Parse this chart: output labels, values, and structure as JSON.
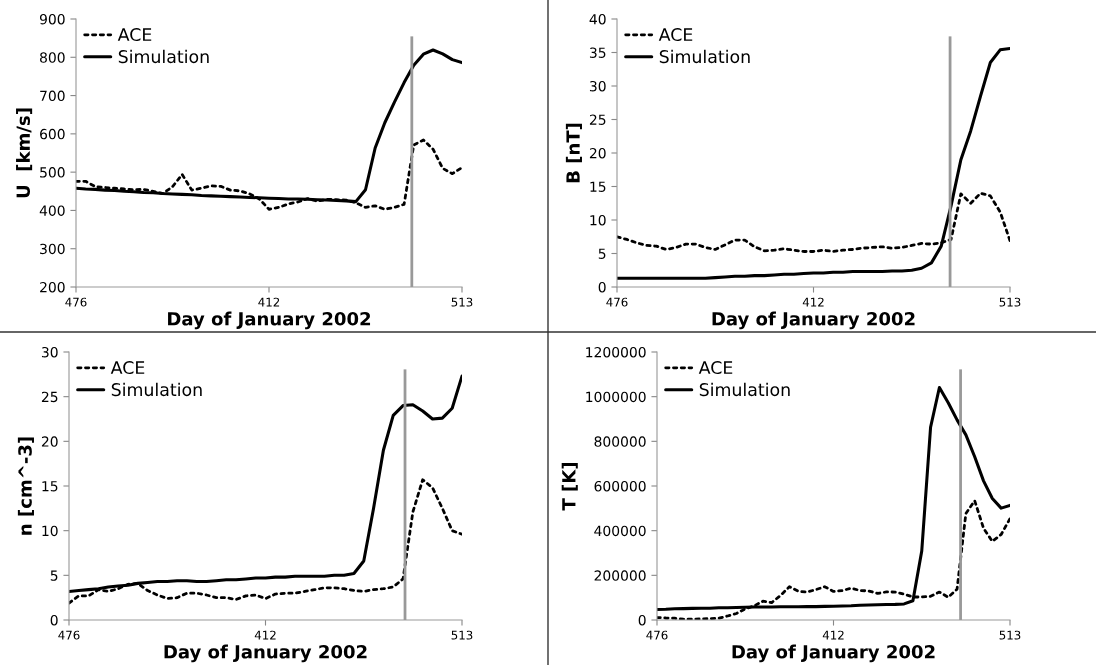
{
  "chart_data": [
    {
      "type": "line",
      "xlabel": "Day of January 2002",
      "ylabel": "U  [km/s]",
      "categories": [
        "476",
        null,
        null,
        null,
        null,
        null,
        null,
        null,
        null,
        null,
        null,
        null,
        null,
        null,
        null,
        null,
        null,
        null,
        null,
        null,
        "412",
        null,
        null,
        null,
        null,
        null,
        null,
        null,
        null,
        null,
        null,
        null,
        null,
        null,
        null,
        null,
        null,
        null,
        null,
        null,
        "513"
      ],
      "ylim": [
        200,
        900
      ],
      "yticks": [
        200,
        300,
        400,
        500,
        600,
        700,
        800,
        900
      ],
      "legend": "top left",
      "series": [
        {
          "name": "ACE",
          "color": "#000000",
          "line_style": "dotted",
          "values": [
            476,
            476,
            462,
            460,
            458,
            456,
            454,
            455,
            450,
            444,
            462,
            494,
            453,
            458,
            464,
            463,
            453,
            451,
            443,
            430,
            403,
            408,
            417,
            422,
            431,
            424,
            429,
            428,
            427,
            420,
            408,
            412,
            403,
            408,
            416,
            571,
            584,
            560,
            510,
            496,
            512
          ]
        },
        {
          "name": "Simulation",
          "color": "#000000",
          "line_style": "solid",
          "values": [
            458,
            456,
            455,
            453,
            452,
            450,
            449,
            447,
            446,
            444,
            443,
            442,
            441,
            439,
            438,
            437,
            436,
            435,
            434,
            433,
            432,
            431,
            430,
            430,
            429,
            428,
            427,
            426,
            425,
            423,
            454,
            563,
            629,
            683,
            734,
            779,
            808,
            819,
            809,
            794,
            786
          ]
        }
      ]
    },
    {
      "type": "line",
      "xlabel": "Day of January 2002",
      "ylabel": "B [nT]",
      "categories": [
        "476",
        null,
        null,
        null,
        null,
        null,
        null,
        null,
        null,
        null,
        null,
        null,
        null,
        null,
        null,
        null,
        null,
        null,
        null,
        null,
        "412",
        null,
        null,
        null,
        null,
        null,
        null,
        null,
        null,
        null,
        null,
        null,
        null,
        null,
        null,
        null,
        null,
        null,
        null,
        null,
        "513"
      ],
      "ylim": [
        0,
        40
      ],
      "yticks": [
        0,
        5,
        10,
        15,
        20,
        25,
        30,
        35,
        40
      ],
      "legend": "top left",
      "series": [
        {
          "name": "ACE",
          "color": "#000000",
          "line_style": "dotted",
          "values": [
            7.5,
            7.1,
            6.6,
            6.2,
            6.1,
            5.6,
            5.9,
            6.4,
            6.4,
            5.9,
            5.6,
            6.3,
            7.0,
            7.0,
            6.0,
            5.4,
            5.5,
            5.7,
            5.5,
            5.3,
            5.3,
            5.5,
            5.3,
            5.5,
            5.6,
            5.8,
            5.9,
            6.0,
            5.8,
            5.9,
            6.2,
            6.5,
            6.4,
            6.6,
            7.1,
            13.9,
            12.5,
            14.0,
            13.6,
            11.2,
            6.9
          ]
        },
        {
          "name": "Simulation",
          "color": "#000000",
          "line_style": "solid",
          "values": [
            1.3,
            1.3,
            1.3,
            1.3,
            1.3,
            1.3,
            1.3,
            1.3,
            1.3,
            1.3,
            1.4,
            1.5,
            1.6,
            1.6,
            1.7,
            1.7,
            1.8,
            1.9,
            1.9,
            2.0,
            2.1,
            2.1,
            2.2,
            2.2,
            2.3,
            2.3,
            2.3,
            2.3,
            2.4,
            2.4,
            2.5,
            2.8,
            3.6,
            6.1,
            12.1,
            19.0,
            23.3,
            28.5,
            33.5,
            35.4,
            35.6
          ]
        }
      ]
    },
    {
      "type": "line",
      "xlabel": "Day of January 2002",
      "ylabel": "n [cm^-3]",
      "categories": [
        "476",
        null,
        null,
        null,
        null,
        null,
        null,
        null,
        null,
        null,
        null,
        null,
        null,
        null,
        null,
        null,
        null,
        null,
        null,
        null,
        "412",
        null,
        null,
        null,
        null,
        null,
        null,
        null,
        null,
        null,
        null,
        null,
        null,
        null,
        null,
        null,
        null,
        null,
        null,
        null,
        "513"
      ],
      "ylim": [
        0,
        30
      ],
      "yticks": [
        0,
        5,
        10,
        15,
        20,
        25,
        30
      ],
      "legend": "top left",
      "series": [
        {
          "name": "ACE",
          "color": "#000000",
          "line_style": "dotted",
          "values": [
            1.9,
            2.7,
            2.7,
            3.4,
            3.2,
            3.5,
            4.0,
            4.1,
            3.3,
            2.8,
            2.4,
            2.5,
            3.0,
            3.0,
            2.8,
            2.5,
            2.5,
            2.3,
            2.7,
            2.8,
            2.4,
            2.9,
            3.0,
            3.0,
            3.2,
            3.4,
            3.6,
            3.6,
            3.5,
            3.3,
            3.2,
            3.4,
            3.5,
            3.7,
            4.6,
            12.1,
            15.7,
            14.8,
            12.5,
            10.0,
            9.6
          ]
        },
        {
          "name": "Simulation",
          "color": "#000000",
          "line_style": "solid",
          "values": [
            3.2,
            3.3,
            3.4,
            3.5,
            3.7,
            3.8,
            3.9,
            4.1,
            4.2,
            4.3,
            4.3,
            4.4,
            4.4,
            4.3,
            4.3,
            4.4,
            4.5,
            4.5,
            4.6,
            4.7,
            4.7,
            4.8,
            4.8,
            4.9,
            4.9,
            4.9,
            4.9,
            5.0,
            5.0,
            5.2,
            6.6,
            12.5,
            19.0,
            22.9,
            24.0,
            24.1,
            23.4,
            22.5,
            22.6,
            23.7,
            27.3
          ]
        }
      ]
    },
    {
      "type": "line",
      "xlabel": "Day of January 2002",
      "ylabel": "T [K]",
      "categories": [
        "476",
        null,
        null,
        null,
        null,
        null,
        null,
        null,
        null,
        null,
        null,
        null,
        null,
        null,
        null,
        null,
        null,
        null,
        null,
        null,
        "412",
        null,
        null,
        null,
        null,
        null,
        null,
        null,
        null,
        null,
        null,
        null,
        null,
        null,
        null,
        null,
        null,
        null,
        null,
        null,
        "513"
      ],
      "ylim": [
        0,
        1200000
      ],
      "yticks": [
        0,
        200000,
        400000,
        600000,
        800000,
        1000000,
        1200000
      ],
      "legend": "top left",
      "series": [
        {
          "name": "ACE",
          "color": "#000000",
          "line_style": "dotted",
          "values": [
            11000,
            9000,
            8000,
            4000,
            4000,
            5000,
            6000,
            8000,
            18000,
            29000,
            50000,
            63000,
            84000,
            78000,
            110000,
            149000,
            129000,
            125000,
            136000,
            149000,
            128000,
            132000,
            142000,
            132000,
            130000,
            119000,
            126000,
            125000,
            116000,
            103000,
            103000,
            106000,
            125000,
            102000,
            138000,
            477000,
            534000,
            411000,
            352000,
            383000,
            454000
          ]
        },
        {
          "name": "Simulation",
          "color": "#000000",
          "line_style": "solid",
          "values": [
            47000,
            48000,
            50000,
            51000,
            52000,
            53000,
            53000,
            55000,
            55000,
            56000,
            57000,
            58000,
            58000,
            58000,
            59000,
            59000,
            59000,
            60000,
            60000,
            61000,
            62000,
            63000,
            64000,
            66000,
            67000,
            68000,
            69000,
            70000,
            72000,
            86000,
            309000,
            863000,
            1041000,
            973000,
            896000,
            829000,
            731000,
            623000,
            544000,
            501000,
            513000
          ]
        }
      ]
    }
  ]
}
